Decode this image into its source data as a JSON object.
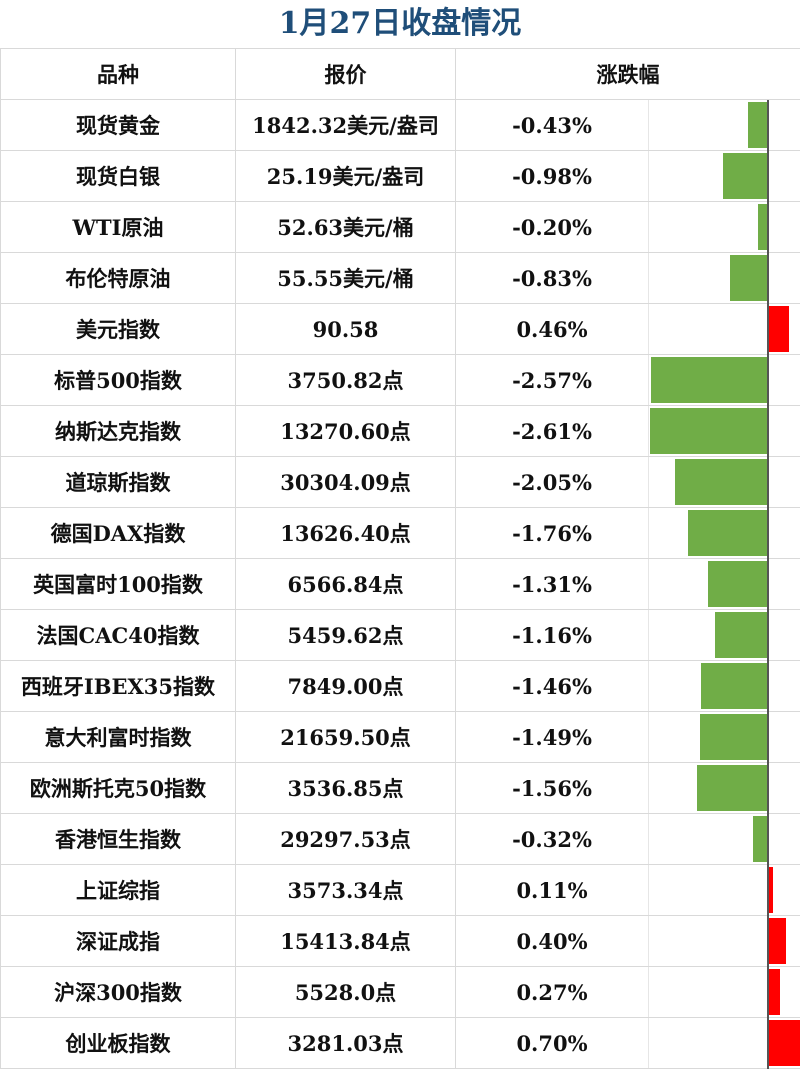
{
  "chart_data": {
    "type": "table",
    "title": "1月27日收盘情况",
    "columns": [
      "品种",
      "报价",
      "涨跌幅"
    ],
    "colors": {
      "negative": "#70ad47",
      "positive": "#ff0000",
      "title": "#1f4e79"
    },
    "rows": [
      {
        "name": "现货黄金",
        "price": "1842.32美元/盎司",
        "change_label": "-0.43%",
        "change": -0.43
      },
      {
        "name": "现货白银",
        "price": "25.19美元/盎司",
        "change_label": "-0.98%",
        "change": -0.98
      },
      {
        "name": "WTI原油",
        "price": "52.63美元/桶",
        "change_label": "-0.20%",
        "change": -0.2
      },
      {
        "name": "布伦特原油",
        "price": "55.55美元/桶",
        "change_label": "-0.83%",
        "change": -0.83
      },
      {
        "name": "美元指数",
        "price": "90.58",
        "change_label": "0.46%",
        "change": 0.46
      },
      {
        "name": "标普500指数",
        "price": "3750.82点",
        "change_label": "-2.57%",
        "change": -2.57
      },
      {
        "name": "纳斯达克指数",
        "price": "13270.60点",
        "change_label": "-2.61%",
        "change": -2.61
      },
      {
        "name": "道琼斯指数",
        "price": "30304.09点",
        "change_label": "-2.05%",
        "change": -2.05
      },
      {
        "name": "德国DAX指数",
        "price": "13626.40点",
        "change_label": "-1.76%",
        "change": -1.76
      },
      {
        "name": "英国富时100指数",
        "price": "6566.84点",
        "change_label": "-1.31%",
        "change": -1.31
      },
      {
        "name": "法国CAC40指数",
        "price": "5459.62点",
        "change_label": "-1.16%",
        "change": -1.16
      },
      {
        "name": "西班牙IBEX35指数",
        "price": "7849.00点",
        "change_label": "-1.46%",
        "change": -1.46
      },
      {
        "name": "意大利富时指数",
        "price": "21659.50点",
        "change_label": "-1.49%",
        "change": -1.49
      },
      {
        "name": "欧洲斯托克50指数",
        "price": "3536.85点",
        "change_label": "-1.56%",
        "change": -1.56
      },
      {
        "name": "香港恒生指数",
        "price": "29297.53点",
        "change_label": "-0.32%",
        "change": -0.32
      },
      {
        "name": "上证综指",
        "price": "3573.34点",
        "change_label": "0.11%",
        "change": 0.11
      },
      {
        "name": "深证成指",
        "price": "15413.84点",
        "change_label": "0.40%",
        "change": 0.4
      },
      {
        "name": "沪深300指数",
        "price": "5528.0点",
        "change_label": "0.27%",
        "change": 0.27
      },
      {
        "name": "创业板指数",
        "price": "3281.03点",
        "change_label": "0.70%",
        "change": 0.7
      }
    ]
  }
}
